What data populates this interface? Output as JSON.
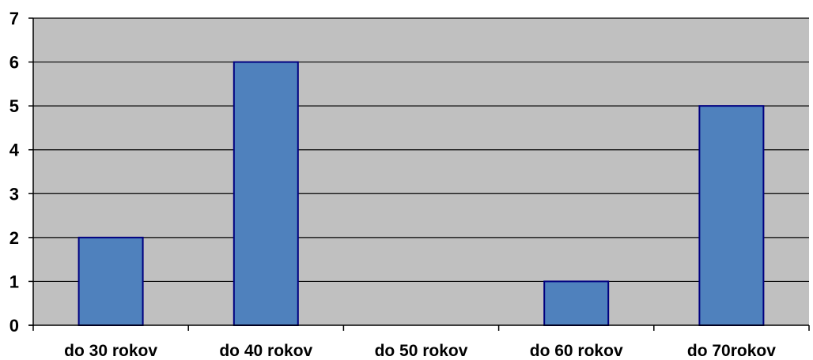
{
  "chart_data": {
    "type": "bar",
    "categories": [
      "do 30 rokov",
      "do 40 rokov",
      "do 50 rokov",
      "do 60 rokov",
      "do 70rokov"
    ],
    "values": [
      2,
      6,
      0,
      1,
      5
    ],
    "y_ticks": [
      "0",
      "1",
      "2",
      "3",
      "4",
      "5",
      "6",
      "7"
    ],
    "ylim": [
      0,
      7
    ],
    "grid": "horizontal",
    "legend": "none",
    "colors": {
      "plot_background": "#c0c0c0",
      "bar_fill": "#4f81bd",
      "bar_stroke": "#000080",
      "gridline": "#000000",
      "axis": "#000000",
      "text": "#000000"
    }
  }
}
